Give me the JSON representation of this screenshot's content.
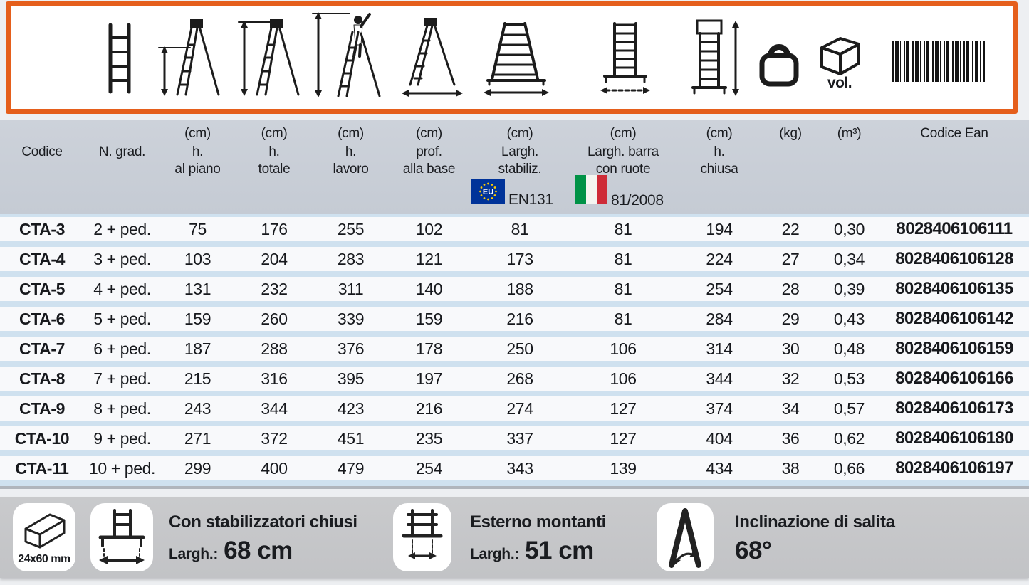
{
  "top_strip": {
    "volume_label": "vol.",
    "icons": [
      "straight-ladder",
      "platform-height",
      "total-height",
      "working-height",
      "base-depth",
      "stabilizer-width",
      "wheel-bar-width",
      "closed-height",
      "weight",
      "volume",
      "barcode"
    ]
  },
  "table": {
    "headers": [
      {
        "unit": "",
        "line1": "Codice",
        "line2": ""
      },
      {
        "unit": "",
        "line1": "N. grad.",
        "line2": ""
      },
      {
        "unit": "(cm)",
        "line1": "h.",
        "line2": "al piano"
      },
      {
        "unit": "(cm)",
        "line1": "h.",
        "line2": "totale"
      },
      {
        "unit": "(cm)",
        "line1": "h.",
        "line2": "lavoro"
      },
      {
        "unit": "(cm)",
        "line1": "prof.",
        "line2": "alla base"
      },
      {
        "unit": "(cm)",
        "line1": "Largh.",
        "line2": "stabiliz."
      },
      {
        "unit": "(cm)",
        "line1": "Largh. barra",
        "line2": "con ruote"
      },
      {
        "unit": "(cm)",
        "line1": "h.",
        "line2": "chiusa"
      },
      {
        "unit": "(kg)",
        "line1": "",
        "line2": ""
      },
      {
        "unit": "(m³)",
        "line1": "",
        "line2": ""
      },
      {
        "unit": "Codice Ean",
        "line1": "",
        "line2": ""
      }
    ],
    "certifications": [
      {
        "icon": "eu-flag",
        "label": "EN131"
      },
      {
        "icon": "italy-flag",
        "label": "81/2008"
      }
    ],
    "rows": [
      [
        "CTA-3",
        "2 + ped.",
        "75",
        "176",
        "255",
        "102",
        "81",
        "81",
        "194",
        "22",
        "0,30",
        "8028406106111"
      ],
      [
        "CTA-4",
        "3 + ped.",
        "103",
        "204",
        "283",
        "121",
        "173",
        "81",
        "224",
        "27",
        "0,34",
        "8028406106128"
      ],
      [
        "CTA-5",
        "4 + ped.",
        "131",
        "232",
        "311",
        "140",
        "188",
        "81",
        "254",
        "28",
        "0,39",
        "8028406106135"
      ],
      [
        "CTA-6",
        "5 + ped.",
        "159",
        "260",
        "339",
        "159",
        "216",
        "81",
        "284",
        "29",
        "0,43",
        "8028406106142"
      ],
      [
        "CTA-7",
        "6 + ped.",
        "187",
        "288",
        "376",
        "178",
        "250",
        "106",
        "314",
        "30",
        "0,48",
        "8028406106159"
      ],
      [
        "CTA-8",
        "7 + ped.",
        "215",
        "316",
        "395",
        "197",
        "268",
        "106",
        "344",
        "32",
        "0,53",
        "8028406106166"
      ],
      [
        "CTA-9",
        "8 + ped.",
        "243",
        "344",
        "423",
        "216",
        "274",
        "127",
        "374",
        "34",
        "0,57",
        "8028406106173"
      ],
      [
        "CTA-10",
        "9 + ped.",
        "271",
        "372",
        "451",
        "235",
        "337",
        "127",
        "404",
        "36",
        "0,62",
        "8028406106180"
      ],
      [
        "CTA-11",
        "10 + ped.",
        "299",
        "400",
        "479",
        "254",
        "343",
        "139",
        "434",
        "38",
        "0,66",
        "8028406106197"
      ]
    ]
  },
  "legend": {
    "profile_label": "24x60 mm",
    "stabilizers_title": "Con stabilizzatori chiusi",
    "stabilizers_label": "Largh.:",
    "stabilizers_value": "68 cm",
    "uprights_title": "Esterno montanti",
    "uprights_label": "Largh.:",
    "uprights_value": "51 cm",
    "inclination_title": "Inclinazione di salita",
    "inclination_value": "68°"
  },
  "colors": {
    "accent_orange": "#e55f1c",
    "header_band": "#c9cfd7",
    "row_gap_blue": "#cfe1ef",
    "legend_band": "#c5c6c8",
    "eu_blue": "#003399",
    "italy_green": "#009246",
    "italy_red": "#ce2b37"
  }
}
